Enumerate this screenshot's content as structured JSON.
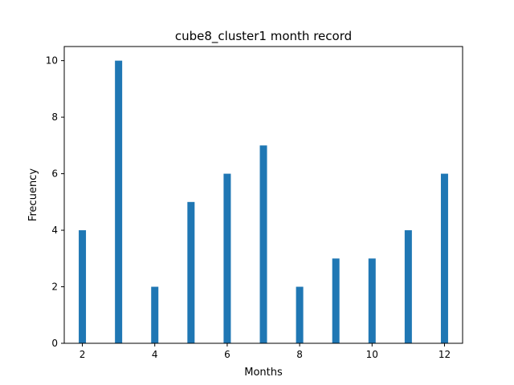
{
  "chart_data": {
    "type": "bar",
    "title": "cube8_cluster1 month record",
    "xlabel": "Months",
    "ylabel": "Frecuency",
    "x": [
      2,
      3,
      4,
      5,
      6,
      7,
      8,
      9,
      10,
      11,
      12
    ],
    "values": [
      4,
      10,
      2,
      5,
      6,
      7,
      2,
      3,
      3,
      4,
      6
    ],
    "xlim": [
      1.5,
      12.5
    ],
    "ylim": [
      0,
      10.5
    ],
    "xticks": [
      2,
      4,
      6,
      8,
      10,
      12
    ],
    "yticks": [
      0,
      2,
      4,
      6,
      8,
      10
    ],
    "bar_color": "#1f77b4",
    "grid": false,
    "legend": "none"
  }
}
